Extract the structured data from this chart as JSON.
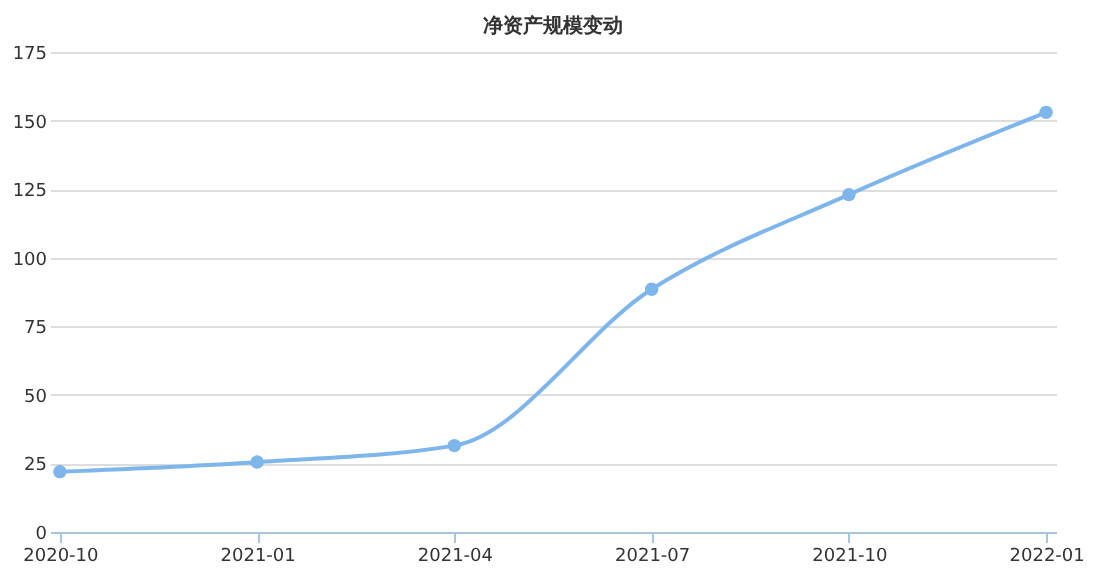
{
  "chart_data": {
    "type": "line",
    "title": "净资产规模变动",
    "categories": [
      "2020-10",
      "2021-01",
      "2021-04",
      "2021-07",
      "2021-10",
      "2022-01"
    ],
    "series": [
      {
        "color": "#7eb5ea",
        "values": [
          22,
          25.5,
          31.5,
          88.5,
          123,
          153
        ]
      }
    ],
    "ylim": [
      0,
      175
    ],
    "yticks": [
      0,
      25,
      50,
      75,
      100,
      125,
      150,
      175
    ],
    "grid": "y",
    "marker": "circle",
    "line_style": "solid",
    "legend": false
  }
}
